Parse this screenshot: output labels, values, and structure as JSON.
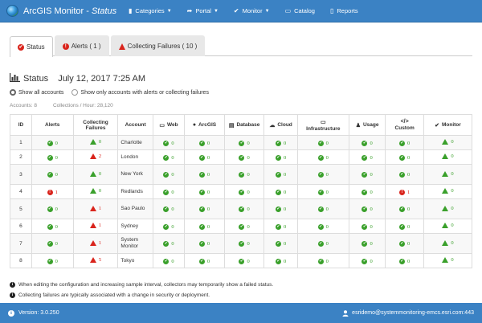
{
  "app": {
    "title": "ArcGIS Monitor - ",
    "title_italic": "Status"
  },
  "nav": {
    "items": [
      {
        "label": "Categories",
        "icon": "bar-chart-icon",
        "has_caret": true
      },
      {
        "label": "Portal",
        "icon": "share-icon",
        "has_caret": true
      },
      {
        "label": "Monitor",
        "icon": "check-circle-icon",
        "has_caret": true
      },
      {
        "label": "Catalog",
        "icon": "monitor-icon",
        "has_caret": false
      },
      {
        "label": "Reports",
        "icon": "document-icon",
        "has_caret": false
      }
    ]
  },
  "tabs": [
    {
      "label": "Status",
      "icon": "check-circle-icon",
      "active": true
    },
    {
      "label": "Alerts ( 1 )",
      "icon": "exclamation-circle-icon",
      "active": false
    },
    {
      "label": "Collecting Failures ( 10 )",
      "icon": "warning-triangle-icon",
      "active": false
    }
  ],
  "status": {
    "label": "Status",
    "date": "July 12, 2017 7:25 AM"
  },
  "filters": {
    "option_all": "Show all accounts",
    "option_alerts": "Show only accounts with alerts or collecting failures",
    "selected": "all"
  },
  "counts": {
    "accounts": "Accounts: 8",
    "collections": "Collections / Hour: 28,120"
  },
  "table": {
    "headers": {
      "id": "ID",
      "alerts": "Alerts",
      "collecting_failures": "Collecting Failures",
      "account": "Account",
      "web": "Web",
      "arcgis": "ArcGIS",
      "database": "Database",
      "cloud": "Cloud",
      "infrastructure": "Infrastructure",
      "usage": "Usage",
      "custom": "Custom",
      "monitor": "Monitor"
    },
    "rows": [
      {
        "id": "1",
        "account": "Charlotte",
        "tall": false,
        "cells": [
          [
            "ok",
            "0"
          ],
          [
            "warn-g",
            "0"
          ],
          [
            "ok",
            "0"
          ],
          [
            "ok",
            "0"
          ],
          [
            "ok",
            "0"
          ],
          [
            "ok",
            "0"
          ],
          [
            "ok",
            "0"
          ],
          [
            "ok",
            "0"
          ],
          [
            "ok",
            "0"
          ],
          [
            "warn-g",
            "0"
          ]
        ]
      },
      {
        "id": "2",
        "account": "London",
        "tall": false,
        "cells": [
          [
            "ok",
            "0"
          ],
          [
            "warn-r",
            "2"
          ],
          [
            "ok",
            "0"
          ],
          [
            "ok",
            "0"
          ],
          [
            "ok",
            "0"
          ],
          [
            "ok",
            "0"
          ],
          [
            "ok",
            "0"
          ],
          [
            "ok",
            "0"
          ],
          [
            "ok",
            "0"
          ],
          [
            "warn-g",
            "0"
          ]
        ]
      },
      {
        "id": "3",
        "account": "New York",
        "tall": true,
        "cells": [
          [
            "ok",
            "0"
          ],
          [
            "warn-g",
            "0"
          ],
          [
            "ok",
            "0"
          ],
          [
            "ok",
            "0"
          ],
          [
            "ok",
            "0"
          ],
          [
            "ok",
            "0"
          ],
          [
            "ok",
            "0"
          ],
          [
            "ok",
            "0"
          ],
          [
            "ok",
            "0"
          ],
          [
            "warn-g",
            "0"
          ]
        ]
      },
      {
        "id": "4",
        "account": "Redlands",
        "tall": false,
        "cells": [
          [
            "err-r",
            "1"
          ],
          [
            "warn-g",
            "0"
          ],
          [
            "ok",
            "0"
          ],
          [
            "ok",
            "0"
          ],
          [
            "ok",
            "0"
          ],
          [
            "ok",
            "0"
          ],
          [
            "ok",
            "0"
          ],
          [
            "ok",
            "0"
          ],
          [
            "err-r",
            "1"
          ],
          [
            "warn-g",
            "0"
          ]
        ]
      },
      {
        "id": "5",
        "account": "Sao Paulo",
        "tall": true,
        "cells": [
          [
            "ok",
            "0"
          ],
          [
            "warn-r",
            "1"
          ],
          [
            "ok",
            "0"
          ],
          [
            "ok",
            "0"
          ],
          [
            "ok",
            "0"
          ],
          [
            "ok",
            "0"
          ],
          [
            "ok",
            "0"
          ],
          [
            "ok",
            "0"
          ],
          [
            "ok",
            "0"
          ],
          [
            "warn-g",
            "0"
          ]
        ]
      },
      {
        "id": "6",
        "account": "Sydney",
        "tall": false,
        "cells": [
          [
            "ok",
            "0"
          ],
          [
            "warn-r",
            "1"
          ],
          [
            "ok",
            "0"
          ],
          [
            "ok",
            "0"
          ],
          [
            "ok",
            "0"
          ],
          [
            "ok",
            "0"
          ],
          [
            "ok",
            "0"
          ],
          [
            "ok",
            "0"
          ],
          [
            "ok",
            "0"
          ],
          [
            "warn-g",
            "0"
          ]
        ]
      },
      {
        "id": "7",
        "account": "System Monitor",
        "tall": true,
        "cells": [
          [
            "ok",
            "0"
          ],
          [
            "warn-r",
            "1"
          ],
          [
            "ok",
            "0"
          ],
          [
            "ok",
            "0"
          ],
          [
            "ok",
            "0"
          ],
          [
            "ok",
            "0"
          ],
          [
            "ok",
            "0"
          ],
          [
            "ok",
            "0"
          ],
          [
            "ok",
            "0"
          ],
          [
            "warn-g",
            "0"
          ]
        ]
      },
      {
        "id": "8",
        "account": "Tokyo",
        "tall": false,
        "cells": [
          [
            "ok",
            "0"
          ],
          [
            "warn-r",
            "5"
          ],
          [
            "ok",
            "0"
          ],
          [
            "ok",
            "0"
          ],
          [
            "ok",
            "0"
          ],
          [
            "ok",
            "0"
          ],
          [
            "ok",
            "0"
          ],
          [
            "ok",
            "0"
          ],
          [
            "ok",
            "0"
          ],
          [
            "warn-g",
            "0"
          ]
        ]
      }
    ]
  },
  "notes": [
    "When editing the configuration and increasing sample interval, collectors may temporarily show a failed status.",
    "Collecting failures are typically associated with a change in security or deployment."
  ],
  "footer": {
    "version": "Version: 3.0.250",
    "user": "esridemo@systemmonitoring-emcs.esri.com:443"
  },
  "colors": {
    "nav": "#3b82c4",
    "ok": "#3aa02b",
    "error": "#d9241c"
  }
}
